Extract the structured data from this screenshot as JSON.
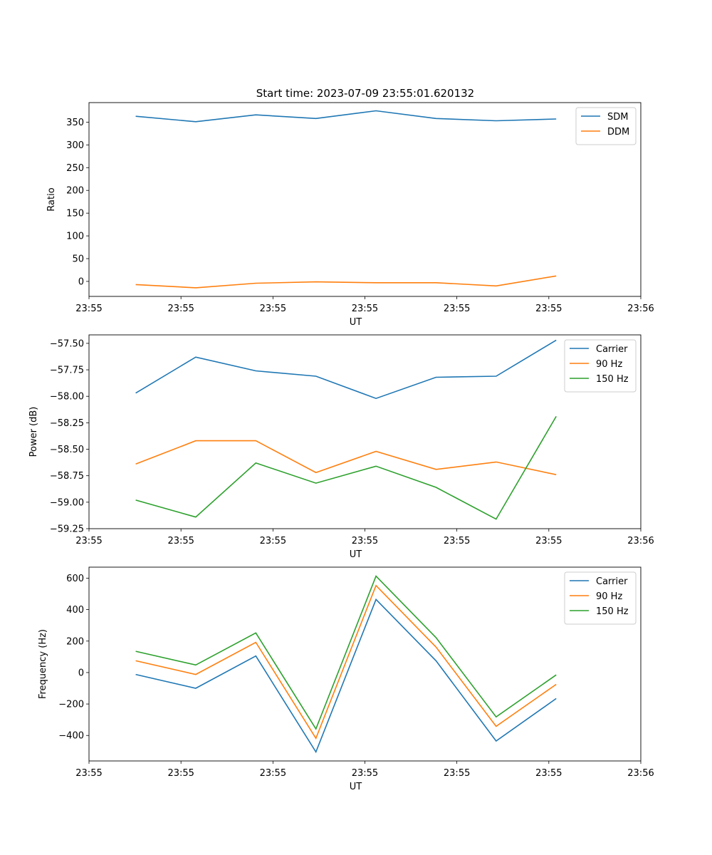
{
  "title": "Start time: 2023-07-09 23:55:01.620132",
  "chart_data": [
    {
      "type": "line",
      "title": "Start time: 2023-07-09 23:55:01.620132",
      "xlabel": "UT",
      "ylabel": "Ratio",
      "x": [
        1,
        2,
        3,
        4,
        5,
        6,
        7,
        8
      ],
      "xlim": [
        0.223,
        9.408
      ],
      "x_ticks": [
        0.223,
        1.754,
        3.285,
        4.815,
        6.346,
        7.877,
        9.408
      ],
      "x_tick_labels": [
        "23:55",
        "23:55",
        "23:55",
        "23:55",
        "23:55",
        "23:55",
        "23:56"
      ],
      "ylim": [
        -33,
        393
      ],
      "y_ticks": [
        0,
        50,
        100,
        150,
        200,
        250,
        300,
        350
      ],
      "y_tick_labels": [
        "0",
        "50",
        "100",
        "150",
        "200",
        "250",
        "300",
        "350"
      ],
      "legend": "top-right",
      "series": [
        {
          "name": "SDM",
          "color": "#1f77b4",
          "values": [
            363,
            351,
            366,
            358,
            375,
            358,
            353,
            357
          ]
        },
        {
          "name": "DDM",
          "color": "#ff7f0e",
          "values": [
            -7,
            -14,
            -4,
            -1,
            -3,
            -3,
            -10,
            12
          ]
        }
      ]
    },
    {
      "type": "line",
      "title": "",
      "xlabel": "UT",
      "ylabel": "Power (dB)",
      "x": [
        1,
        2,
        3,
        4,
        5,
        6,
        7,
        8
      ],
      "xlim": [
        0.223,
        9.408
      ],
      "x_ticks": [
        0.223,
        1.754,
        3.285,
        4.815,
        6.346,
        7.877,
        9.408
      ],
      "x_tick_labels": [
        "23:55",
        "23:55",
        "23:55",
        "23:55",
        "23:55",
        "23:55",
        "23:56"
      ],
      "ylim": [
        -59.25,
        -57.42
      ],
      "y_ticks": [
        -59.25,
        -59.0,
        -58.75,
        -58.5,
        -58.25,
        -58.0,
        -57.75,
        -57.5
      ],
      "y_tick_labels": [
        "−59.25",
        "−59.00",
        "−58.75",
        "−58.50",
        "−58.25",
        "−58.00",
        "−57.75",
        "−57.50"
      ],
      "legend": "top-right",
      "series": [
        {
          "name": "Carrier",
          "color": "#1f77b4",
          "values": [
            -57.97,
            -57.63,
            -57.76,
            -57.81,
            -58.02,
            -57.82,
            -57.81,
            -57.47
          ]
        },
        {
          "name": "90 Hz",
          "color": "#ff7f0e",
          "values": [
            -58.64,
            -58.42,
            -58.42,
            -58.72,
            -58.52,
            -58.69,
            -58.62,
            -58.74
          ]
        },
        {
          "name": "150 Hz",
          "color": "#2ca02c",
          "values": [
            -58.98,
            -59.14,
            -58.63,
            -58.82,
            -58.66,
            -58.86,
            -59.16,
            -58.19
          ]
        }
      ]
    },
    {
      "type": "line",
      "title": "",
      "xlabel": "UT",
      "ylabel": "Frequency (Hz)",
      "x": [
        1,
        2,
        3,
        4,
        5,
        6,
        7,
        8
      ],
      "xlim": [
        0.223,
        9.408
      ],
      "x_ticks": [
        0.223,
        1.754,
        3.285,
        4.815,
        6.346,
        7.877,
        9.408
      ],
      "x_tick_labels": [
        "23:55",
        "23:55",
        "23:55",
        "23:55",
        "23:55",
        "23:55",
        "23:56"
      ],
      "ylim": [
        -562,
        670
      ],
      "y_ticks": [
        -400,
        -200,
        0,
        200,
        400,
        600
      ],
      "y_tick_labels": [
        "−400",
        "−200",
        "0",
        "200",
        "400",
        "600"
      ],
      "legend": "top-right",
      "series": [
        {
          "name": "Carrier",
          "color": "#1f77b4",
          "values": [
            -12,
            -100,
            105,
            -505,
            465,
            75,
            -435,
            -165
          ]
        },
        {
          "name": "90 Hz",
          "color": "#ff7f0e",
          "values": [
            75,
            -12,
            192,
            -418,
            553,
            162,
            -342,
            -75
          ]
        },
        {
          "name": "150 Hz",
          "color": "#2ca02c",
          "values": [
            135,
            48,
            252,
            -358,
            613,
            222,
            -282,
            -15
          ]
        }
      ]
    }
  ]
}
